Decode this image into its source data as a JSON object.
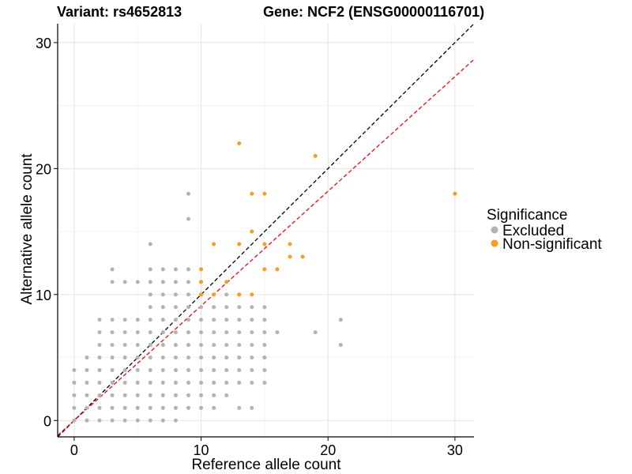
{
  "chart_data": {
    "type": "scatter",
    "title_left": "Variant: rs4652813",
    "title_right": "Gene: NCF2 (ENSG00000116701)",
    "xlabel": "Reference allele count",
    "ylabel": "Alternative allele count",
    "xlim": [
      -1.3,
      31.5
    ],
    "ylim": [
      -1.3,
      31.5
    ],
    "x_ticks": [
      0,
      10,
      20,
      30
    ],
    "y_ticks": [
      0,
      10,
      20,
      30
    ],
    "grid": true,
    "legend": {
      "title": "Significance",
      "placement": "right",
      "entries": [
        {
          "label": "Excluded",
          "color": "#b3b3b3"
        },
        {
          "label": "Non-significant",
          "color": "#ff9a1f"
        }
      ]
    },
    "reference_lines": [
      {
        "slope": 1.0,
        "intercept": 0,
        "color": "#000000",
        "style": "dashed"
      },
      {
        "slope": 0.91,
        "intercept": 0,
        "color": "#ff0000",
        "style": "dashed"
      }
    ],
    "series": [
      {
        "name": "Excluded",
        "color": "#b3b3b3",
        "points": [
          [
            0,
            0
          ],
          [
            0,
            1
          ],
          [
            0,
            2
          ],
          [
            0,
            3
          ],
          [
            0,
            4
          ],
          [
            1,
            0
          ],
          [
            1,
            1
          ],
          [
            1,
            2
          ],
          [
            1,
            3
          ],
          [
            1,
            4
          ],
          [
            1,
            5
          ],
          [
            2,
            0
          ],
          [
            2,
            1
          ],
          [
            2,
            2
          ],
          [
            2,
            3
          ],
          [
            2,
            4
          ],
          [
            2,
            5
          ],
          [
            2,
            6
          ],
          [
            2,
            7
          ],
          [
            2,
            8
          ],
          [
            3,
            0
          ],
          [
            3,
            1
          ],
          [
            3,
            2
          ],
          [
            3,
            3
          ],
          [
            3,
            4
          ],
          [
            3,
            5
          ],
          [
            3,
            6
          ],
          [
            3,
            7
          ],
          [
            3,
            8
          ],
          [
            3,
            11
          ],
          [
            3,
            12
          ],
          [
            4,
            0
          ],
          [
            4,
            1
          ],
          [
            4,
            2
          ],
          [
            4,
            3
          ],
          [
            4,
            4
          ],
          [
            4,
            5
          ],
          [
            4,
            6
          ],
          [
            4,
            7
          ],
          [
            4,
            8
          ],
          [
            4,
            11
          ],
          [
            5,
            0
          ],
          [
            5,
            1
          ],
          [
            5,
            2
          ],
          [
            5,
            3
          ],
          [
            5,
            4
          ],
          [
            5,
            5
          ],
          [
            5,
            6
          ],
          [
            5,
            7
          ],
          [
            5,
            8
          ],
          [
            5,
            11
          ],
          [
            6,
            0
          ],
          [
            6,
            1
          ],
          [
            6,
            2
          ],
          [
            6,
            3
          ],
          [
            6,
            4
          ],
          [
            6,
            5
          ],
          [
            6,
            6
          ],
          [
            6,
            7
          ],
          [
            6,
            8
          ],
          [
            6,
            9
          ],
          [
            6,
            10
          ],
          [
            6,
            11
          ],
          [
            6,
            12
          ],
          [
            6,
            14
          ],
          [
            7,
            0
          ],
          [
            7,
            1
          ],
          [
            7,
            2
          ],
          [
            7,
            3
          ],
          [
            7,
            4
          ],
          [
            7,
            5
          ],
          [
            7,
            6
          ],
          [
            7,
            7
          ],
          [
            7,
            8
          ],
          [
            7,
            9
          ],
          [
            7,
            10
          ],
          [
            7,
            11
          ],
          [
            7,
            12
          ],
          [
            8,
            0
          ],
          [
            8,
            1
          ],
          [
            8,
            2
          ],
          [
            8,
            3
          ],
          [
            8,
            4
          ],
          [
            8,
            5
          ],
          [
            8,
            6
          ],
          [
            8,
            7
          ],
          [
            8,
            8
          ],
          [
            8,
            9
          ],
          [
            8,
            10
          ],
          [
            8,
            11
          ],
          [
            8,
            12
          ],
          [
            9,
            1
          ],
          [
            9,
            2
          ],
          [
            9,
            3
          ],
          [
            9,
            4
          ],
          [
            9,
            5
          ],
          [
            9,
            6
          ],
          [
            9,
            7
          ],
          [
            9,
            8
          ],
          [
            9,
            9
          ],
          [
            9,
            10
          ],
          [
            9,
            11
          ],
          [
            9,
            12
          ],
          [
            9,
            16
          ],
          [
            9,
            18
          ],
          [
            10,
            1
          ],
          [
            10,
            2
          ],
          [
            10,
            3
          ],
          [
            10,
            4
          ],
          [
            10,
            5
          ],
          [
            10,
            6
          ],
          [
            10,
            7
          ],
          [
            10,
            8
          ],
          [
            10,
            9
          ],
          [
            10,
            10
          ],
          [
            10,
            11
          ],
          [
            11,
            1
          ],
          [
            11,
            2
          ],
          [
            11,
            3
          ],
          [
            11,
            4
          ],
          [
            11,
            5
          ],
          [
            11,
            6
          ],
          [
            11,
            7
          ],
          [
            11,
            8
          ],
          [
            11,
            9
          ],
          [
            11,
            10
          ],
          [
            12,
            2
          ],
          [
            12,
            3
          ],
          [
            12,
            4
          ],
          [
            12,
            5
          ],
          [
            12,
            6
          ],
          [
            12,
            7
          ],
          [
            12,
            8
          ],
          [
            12,
            9
          ],
          [
            12,
            10
          ],
          [
            13,
            1
          ],
          [
            13,
            3
          ],
          [
            13,
            4
          ],
          [
            13,
            5
          ],
          [
            13,
            6
          ],
          [
            13,
            7
          ],
          [
            13,
            8
          ],
          [
            13,
            9
          ],
          [
            13,
            10
          ],
          [
            14,
            1
          ],
          [
            14,
            3
          ],
          [
            14,
            4
          ],
          [
            14,
            5
          ],
          [
            14,
            6
          ],
          [
            14,
            7
          ],
          [
            14,
            8
          ],
          [
            14,
            9
          ],
          [
            15,
            3
          ],
          [
            15,
            4
          ],
          [
            15,
            5
          ],
          [
            15,
            6
          ],
          [
            15,
            7
          ],
          [
            15,
            8
          ],
          [
            15,
            9
          ],
          [
            16,
            7
          ],
          [
            19,
            7
          ],
          [
            21,
            6
          ],
          [
            21,
            8
          ]
        ]
      },
      {
        "name": "Non-significant",
        "color": "#ff9a1f",
        "points": [
          [
            10,
            10
          ],
          [
            10,
            11
          ],
          [
            10,
            12
          ],
          [
            11,
            10
          ],
          [
            11,
            14
          ],
          [
            12,
            11
          ],
          [
            13,
            10
          ],
          [
            13,
            14
          ],
          [
            13,
            22
          ],
          [
            14,
            10
          ],
          [
            14,
            15
          ],
          [
            14,
            18
          ],
          [
            15,
            12
          ],
          [
            15,
            14
          ],
          [
            15,
            18
          ],
          [
            16,
            12
          ],
          [
            17,
            13
          ],
          [
            17,
            14
          ],
          [
            18,
            13
          ],
          [
            19,
            21
          ],
          [
            30,
            18
          ]
        ]
      }
    ]
  }
}
